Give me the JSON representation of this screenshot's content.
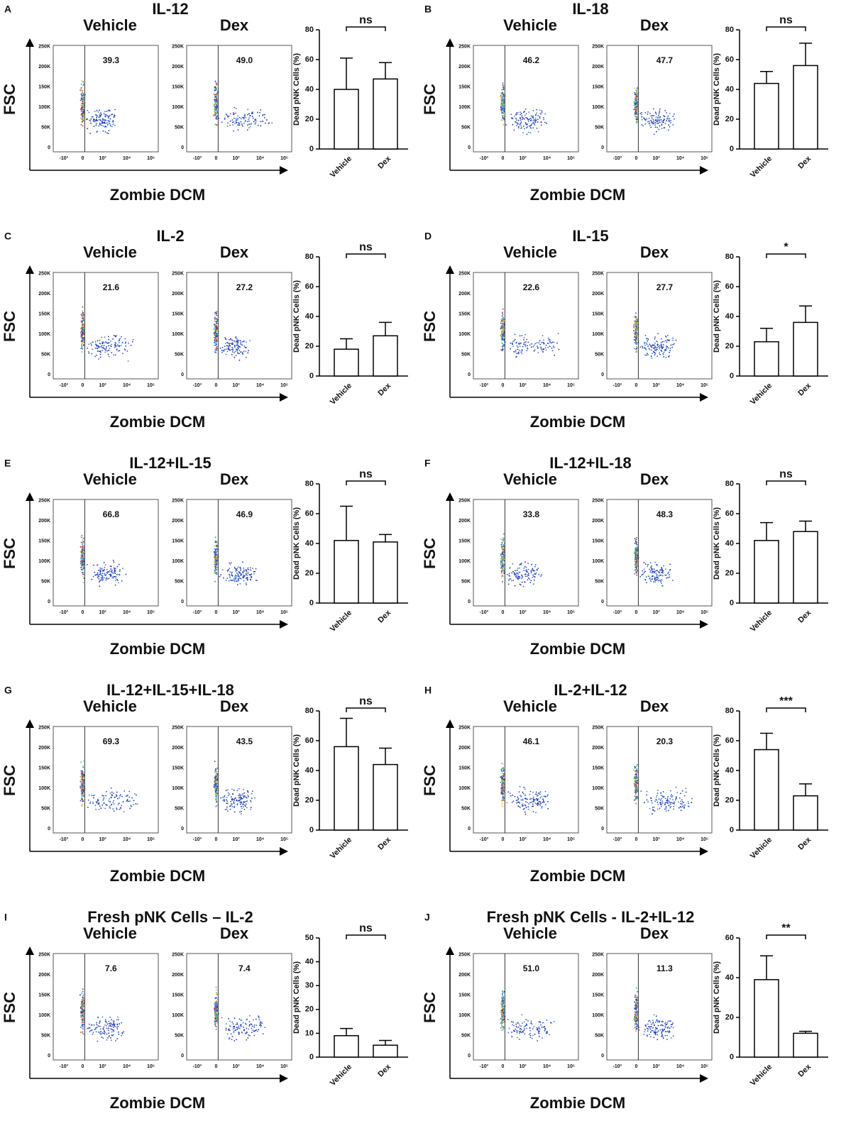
{
  "flow_axes": {
    "yticks": [
      "0",
      "50K",
      "100K",
      "150K",
      "200K",
      "250K"
    ],
    "xticks": [
      "-10³",
      "0",
      "10³",
      "10⁴",
      "10⁵"
    ]
  },
  "chart_data": [
    {
      "type": "bar",
      "panel": "A",
      "title": "IL-12",
      "categories": [
        "Vehicle",
        "Dex"
      ],
      "gate_percentages": [
        "39.3",
        "49.0"
      ],
      "flow_ylabel": "FSC",
      "flow_xlabel": "Zombie DCM",
      "ylabel": "Dead pNK Cells (%)",
      "values": [
        40,
        47
      ],
      "errors": [
        21,
        11
      ],
      "ylim": [
        0,
        80
      ],
      "yticks": [
        0,
        20,
        40,
        60,
        80
      ],
      "significance": "ns",
      "color": "#ffffff"
    },
    {
      "type": "bar",
      "panel": "B",
      "title": "IL-18",
      "categories": [
        "Vehicle",
        "Dex"
      ],
      "gate_percentages": [
        "46.2",
        "47.7"
      ],
      "flow_ylabel": "FSC",
      "flow_xlabel": "Zombie DCM",
      "ylabel": "Dead pNK Cells (%)",
      "values": [
        44,
        56
      ],
      "errors": [
        8,
        15
      ],
      "ylim": [
        0,
        80
      ],
      "yticks": [
        0,
        20,
        40,
        60,
        80
      ],
      "significance": "ns",
      "color": "#ffffff"
    },
    {
      "type": "bar",
      "panel": "C",
      "title": "IL-2",
      "categories": [
        "Vehicle",
        "Dex"
      ],
      "gate_percentages": [
        "21.6",
        "27.2"
      ],
      "flow_ylabel": "FSC",
      "flow_xlabel": "Zombie DCM",
      "ylabel": "Dead pNK Cells (%)",
      "values": [
        18,
        27
      ],
      "errors": [
        7,
        9
      ],
      "ylim": [
        0,
        80
      ],
      "yticks": [
        0,
        20,
        40,
        60,
        80
      ],
      "significance": "ns",
      "color": "#ffffff"
    },
    {
      "type": "bar",
      "panel": "D",
      "title": "IL-15",
      "categories": [
        "Vehicle",
        "Dex"
      ],
      "gate_percentages": [
        "22.6",
        "27.7"
      ],
      "flow_ylabel": "FSC",
      "flow_xlabel": "Zombie DCM",
      "ylabel": "Dead pNK Cells (%)",
      "values": [
        23,
        36
      ],
      "errors": [
        9,
        11
      ],
      "ylim": [
        0,
        80
      ],
      "yticks": [
        0,
        20,
        40,
        60,
        80
      ],
      "significance": "*",
      "color": "#ffffff"
    },
    {
      "type": "bar",
      "panel": "E",
      "title": "IL-12+IL-15",
      "categories": [
        "Vehicle",
        "Dex"
      ],
      "gate_percentages": [
        "66.8",
        "46.9"
      ],
      "flow_ylabel": "FSC",
      "flow_xlabel": "Zombie DCM",
      "ylabel": "Dead pNK Cells (%)",
      "values": [
        42,
        41
      ],
      "errors": [
        23,
        5
      ],
      "ylim": [
        0,
        80
      ],
      "yticks": [
        0,
        20,
        40,
        60,
        80
      ],
      "significance": "ns",
      "color": "#ffffff"
    },
    {
      "type": "bar",
      "panel": "F",
      "title": "IL-12+IL-18",
      "categories": [
        "Vehicle",
        "Dex"
      ],
      "gate_percentages": [
        "33.8",
        "48.3"
      ],
      "flow_ylabel": "FSC",
      "flow_xlabel": "Zombie DCM",
      "ylabel": "Dead pNK Cells (%)",
      "values": [
        42,
        48
      ],
      "errors": [
        12,
        7
      ],
      "ylim": [
        0,
        80
      ],
      "yticks": [
        0,
        20,
        40,
        60,
        80
      ],
      "significance": "ns",
      "color": "#ffffff"
    },
    {
      "type": "bar",
      "panel": "G",
      "title": "IL-12+IL-15+IL-18",
      "categories": [
        "Vehicle",
        "Dex"
      ],
      "gate_percentages": [
        "69.3",
        "43.5"
      ],
      "flow_ylabel": "FSC",
      "flow_xlabel": "Zombie DCM",
      "ylabel": "Dead pNK Cells (%)",
      "values": [
        56,
        44
      ],
      "errors": [
        19,
        11
      ],
      "ylim": [
        0,
        80
      ],
      "yticks": [
        0,
        20,
        40,
        60,
        80
      ],
      "significance": "ns",
      "color": "#ffffff"
    },
    {
      "type": "bar",
      "panel": "H",
      "title": "IL-2+IL-12",
      "categories": [
        "Vehicle",
        "Dex"
      ],
      "gate_percentages": [
        "46.1",
        "20.3"
      ],
      "flow_ylabel": "FSC",
      "flow_xlabel": "Zombie DCM",
      "ylabel": "Dead pNK Cells (%)",
      "values": [
        54,
        23
      ],
      "errors": [
        11,
        8
      ],
      "ylim": [
        0,
        80
      ],
      "yticks": [
        0,
        20,
        40,
        60,
        80
      ],
      "significance": "***",
      "color": "#ffffff"
    },
    {
      "type": "bar",
      "panel": "I",
      "title": "Fresh pNK Cells – IL-2",
      "categories": [
        "Vehicle",
        "Dex"
      ],
      "gate_percentages": [
        "7.6",
        "7.4"
      ],
      "flow_ylabel": "FSC",
      "flow_xlabel": "Zombie DCM",
      "ylabel": "Dead pNK Cells (%)",
      "values": [
        9,
        5
      ],
      "errors": [
        3,
        2
      ],
      "ylim": [
        0,
        50
      ],
      "yticks": [
        0,
        10,
        20,
        30,
        40,
        50
      ],
      "significance": "ns",
      "color": "#ffffff"
    },
    {
      "type": "bar",
      "panel": "J",
      "title": "Fresh pNK Cells - IL-2+IL-12",
      "categories": [
        "Vehicle",
        "Dex"
      ],
      "gate_percentages": [
        "51.0",
        "11.3"
      ],
      "flow_ylabel": "FSC",
      "flow_xlabel": "Zombie DCM",
      "ylabel": "Dead pNK Cells (%)",
      "values": [
        39,
        12
      ],
      "errors": [
        12,
        1
      ],
      "ylim": [
        0,
        60
      ],
      "yticks": [
        0,
        20,
        40,
        60
      ],
      "significance": "**",
      "color": "#ffffff"
    }
  ]
}
